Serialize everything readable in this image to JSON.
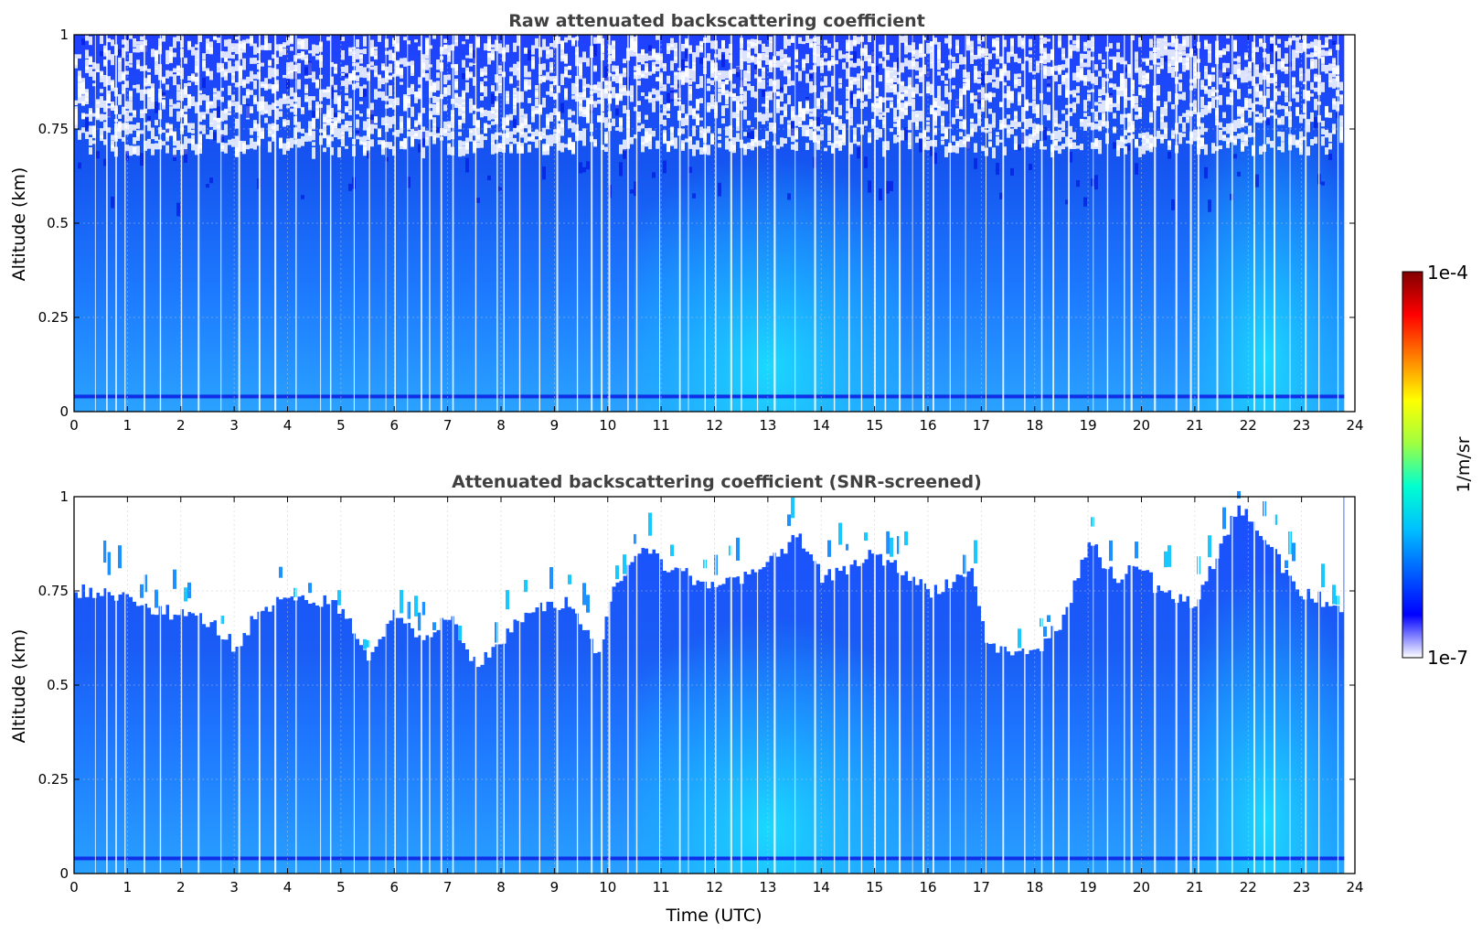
{
  "chart_data": [
    {
      "type": "heatmap",
      "title": "Raw attenuated backscattering coefficient",
      "ylabel": "Altitude (km)",
      "xlabel": "",
      "xlim": [
        0,
        24
      ],
      "ylim": [
        0,
        1
      ],
      "xticks": [
        "0",
        "1",
        "2",
        "3",
        "4",
        "5",
        "6",
        "7",
        "8",
        "9",
        "10",
        "11",
        "12",
        "13",
        "14",
        "15",
        "16",
        "17",
        "18",
        "19",
        "20",
        "21",
        "22",
        "23",
        "24"
      ],
      "yticks": [
        "0",
        "0.25",
        "0.5",
        "0.75",
        "1"
      ],
      "grid": true,
      "screened": false
    },
    {
      "type": "heatmap",
      "title": "Attenuated backscattering coefficient (SNR-screened)",
      "ylabel": "Altitude (km)",
      "xlabel": "Time (UTC)",
      "xlim": [
        0,
        24
      ],
      "ylim": [
        0,
        1
      ],
      "xticks": [
        "0",
        "1",
        "2",
        "3",
        "4",
        "5",
        "6",
        "7",
        "8",
        "9",
        "10",
        "11",
        "12",
        "13",
        "14",
        "15",
        "16",
        "17",
        "18",
        "19",
        "20",
        "21",
        "22",
        "23",
        "24"
      ],
      "yticks": [
        "0",
        "0.25",
        "0.5",
        "0.75",
        "1"
      ],
      "grid": true,
      "screened": true
    }
  ],
  "colorbar": {
    "label": "1/m/sr",
    "max_label": "1e-4",
    "min_label": "1e-7",
    "colors": [
      "#ffffff",
      "#0000ff",
      "#0060ff",
      "#00c0ff",
      "#00ffd0",
      "#a0ff40",
      "#ffff00",
      "#ff8000",
      "#ff0000",
      "#800000"
    ]
  },
  "data_extent_hours": 23.8
}
